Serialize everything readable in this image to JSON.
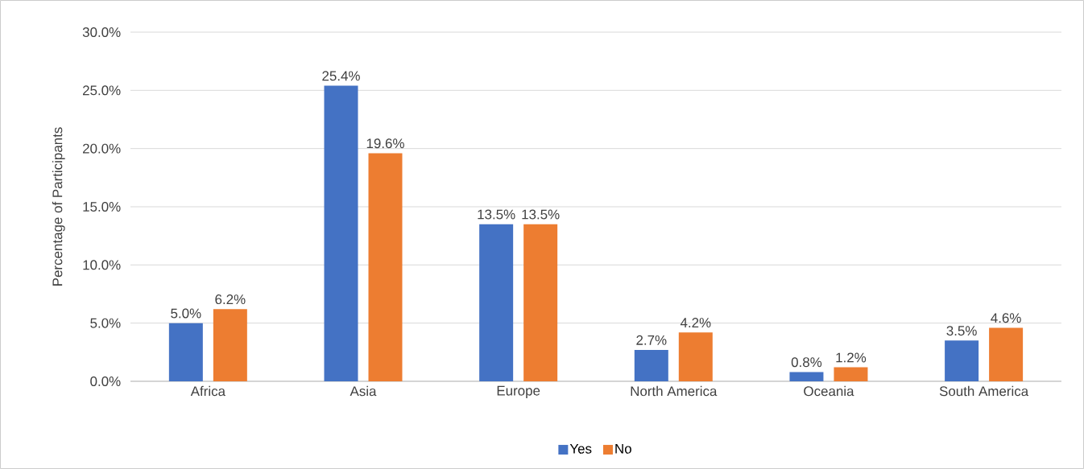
{
  "chart_data": {
    "type": "bar",
    "ylabel": "Percentage of Participants",
    "categories": [
      "Africa",
      "Asia",
      "Europe",
      "North America",
      "Oceania",
      "South America"
    ],
    "series": [
      {
        "name": "Yes",
        "color": "#4472c4",
        "values": [
          5.0,
          25.4,
          13.5,
          2.7,
          0.8,
          3.5
        ],
        "value_labels": [
          "5.0%",
          "25.4%",
          "13.5%",
          "2.7%",
          "0.8%",
          "3.5%"
        ]
      },
      {
        "name": "No",
        "color": "#ed7d31",
        "values": [
          6.2,
          19.6,
          13.5,
          4.2,
          1.2,
          4.6
        ],
        "value_labels": [
          "6.2%",
          "19.6%",
          "13.5%",
          "4.2%",
          "1.2%",
          "4.6%"
        ]
      }
    ],
    "ylim": [
      0,
      30
    ],
    "yticks": [
      {
        "value": 0,
        "label": "0.0%"
      },
      {
        "value": 5,
        "label": "5.0%"
      },
      {
        "value": 10,
        "label": "10.0%"
      },
      {
        "value": 15,
        "label": "15.0%"
      },
      {
        "value": 20,
        "label": "20.0%"
      },
      {
        "value": 25,
        "label": "25.0%"
      },
      {
        "value": 30,
        "label": "30.0%"
      }
    ],
    "grid": "y",
    "legend": "bottom"
  }
}
